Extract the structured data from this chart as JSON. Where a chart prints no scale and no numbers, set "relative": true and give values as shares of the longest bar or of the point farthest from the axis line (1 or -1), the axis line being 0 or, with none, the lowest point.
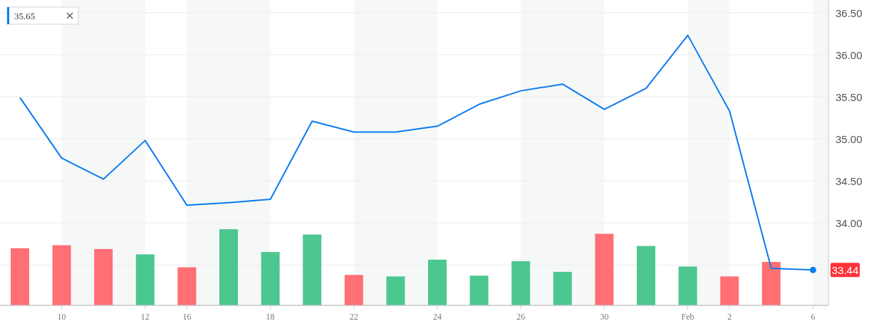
{
  "chart_data": [
    {
      "type": "line",
      "categories": [
        null,
        "10",
        null,
        "12",
        "16",
        null,
        "18",
        null,
        "22",
        null,
        "24",
        null,
        "26",
        null,
        "30",
        null,
        "Feb",
        "2",
        null,
        "6"
      ],
      "series": [
        {
          "color": "#0a7cf0",
          "values": [
            35.49,
            34.77,
            34.52,
            34.98,
            34.21,
            34.24,
            34.28,
            35.21,
            35.08,
            35.08,
            35.15,
            35.41,
            35.57,
            35.65,
            35.35,
            35.6,
            36.23,
            35.33,
            33.46,
            33.44
          ]
        }
      ],
      "ylim": [
        33.02,
        36.65
      ],
      "yticks": [
        {
          "value": 33.5,
          "label": null
        },
        {
          "value": 34,
          "label": "34.00"
        },
        {
          "value": 34.5,
          "label": "34.50"
        },
        {
          "value": 35,
          "label": "35.00"
        },
        {
          "value": 35.5,
          "label": "35.50"
        },
        {
          "value": 36,
          "label": "36.00"
        },
        {
          "value": 36.5,
          "label": "36.50"
        }
      ],
      "grid": "y",
      "bands": [
        {
          "axis": "x",
          "from": "10",
          "to": "12",
          "color": "#f6f8f8"
        },
        {
          "axis": "x",
          "from": "16",
          "to": "18",
          "color": "#f6f8f8"
        },
        {
          "axis": "x",
          "from": "22",
          "to": "24",
          "color": "#f6f8f8"
        },
        {
          "axis": "x",
          "from": "26",
          "to": "30",
          "color": "#f6f8f8"
        },
        {
          "axis": "x",
          "from": "Feb",
          "to": "2",
          "color": "#f6f8f8"
        },
        {
          "axis": "x",
          "from": "6",
          "to": "6",
          "color": "#f6f8f8"
        }
      ],
      "annotations": [
        "35.65",
        {
          "text": "33.44",
          "x": "6",
          "y": 33.44
        }
      ]
    },
    {
      "type": "bar",
      "relative": true,
      "categories": [
        null,
        null,
        null,
        null,
        null,
        null,
        null,
        null,
        null,
        null,
        null,
        null,
        null,
        null,
        null,
        null,
        null,
        null,
        null
      ],
      "values": [
        0.75,
        0.79,
        0.74,
        0.67,
        0.5,
        1,
        0.7,
        0.93,
        0.4,
        0.38,
        0.6,
        0.39,
        0.58,
        0.44,
        0.94,
        0.78,
        0.51,
        0.38,
        0.57
      ],
      "colors": [
        "#ff6f74",
        "#ff6f74",
        "#ff6f74",
        "#4cc790",
        "#ff6f74",
        "#4cc790",
        "#4cc790",
        "#4cc790",
        "#ff6f74",
        "#4cc790",
        "#4cc790",
        "#4cc790",
        "#4cc790",
        "#4cc790",
        "#ff6f74",
        "#4cc790",
        "#4cc790",
        "#ff6f74",
        "#ff6f74"
      ]
    }
  ]
}
